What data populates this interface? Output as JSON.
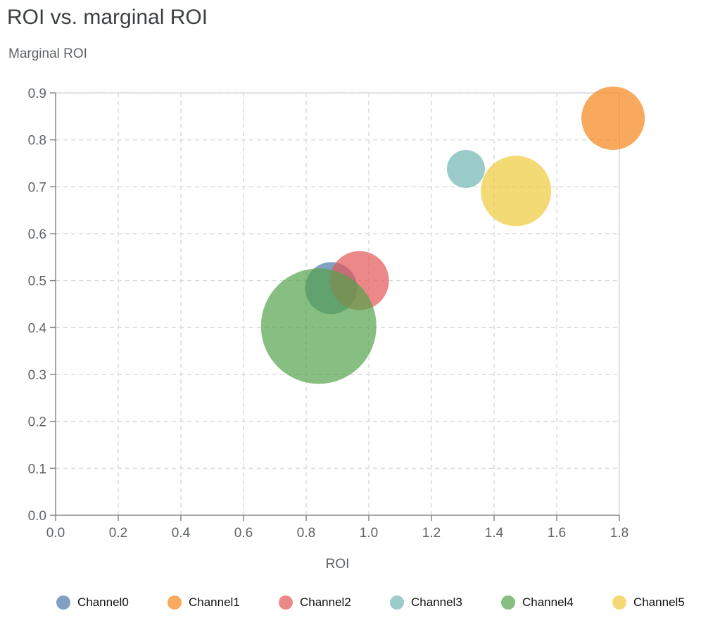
{
  "chart_data": {
    "type": "scatter",
    "title": "ROI vs. marginal ROI",
    "xlabel": "ROI",
    "ylabel": "Marginal ROI",
    "xlim": [
      0,
      1.8
    ],
    "ylim": [
      0,
      0.9
    ],
    "xticks": [
      "0.0",
      "0.2",
      "0.4",
      "0.6",
      "0.8",
      "1.0",
      "1.2",
      "1.4",
      "1.6",
      "1.8"
    ],
    "yticks": [
      "0.0",
      "0.1",
      "0.2",
      "0.3",
      "0.4",
      "0.5",
      "0.6",
      "0.7",
      "0.8",
      "0.9"
    ],
    "grid": true,
    "legend_position": "bottom",
    "bubble_opacity": 0.7,
    "series": [
      {
        "name": "Channel0",
        "x": 0.88,
        "y": 0.484,
        "size": 1369,
        "color": "#4c78a8"
      },
      {
        "name": "Channel1",
        "x": 1.78,
        "y": 0.846,
        "size": 2025,
        "color": "#f58518"
      },
      {
        "name": "Channel2",
        "x": 0.97,
        "y": 0.5,
        "size": 1764,
        "color": "#e45756"
      },
      {
        "name": "Channel3",
        "x": 1.31,
        "y": 0.738,
        "size": 729,
        "color": "#72b7b2"
      },
      {
        "name": "Channel4",
        "x": 0.84,
        "y": 0.403,
        "size": 6724,
        "color": "#54a24b"
      },
      {
        "name": "Channel5",
        "x": 1.47,
        "y": 0.691,
        "size": 2500,
        "color": "#eeca3b"
      }
    ]
  }
}
